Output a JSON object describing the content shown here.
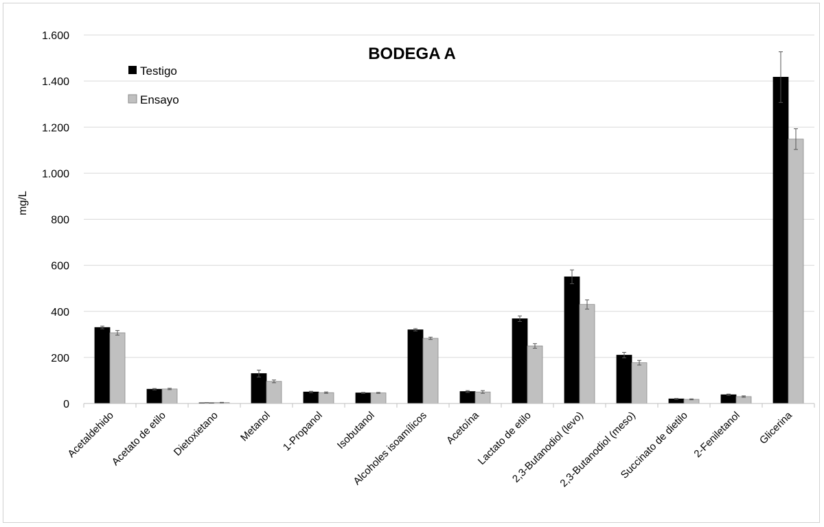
{
  "chart_data": {
    "type": "bar",
    "title": "BODEGA A",
    "xlabel": "",
    "ylabel": "mg/L",
    "ylim": [
      0,
      1600
    ],
    "yticks": [
      0,
      200,
      400,
      600,
      800,
      1000,
      1200,
      1400,
      1600
    ],
    "ytick_labels": [
      "0",
      "200",
      "400",
      "600",
      "800",
      "1.000",
      "1.200",
      "1.400",
      "1.600"
    ],
    "grid": true,
    "legend_position": "top-left",
    "categories": [
      "Acetaldehido",
      "Acetato de etilo",
      "Dietoxietano",
      "Metanol",
      "1-Propanol",
      "Isobutanol",
      "Alcoholes isoamílicos",
      "Acetoína",
      "Lactato de etilo",
      "2,3-Butanodiol (levo)",
      "2,3-Butanodiol (meso)",
      "Succinato de dietilo",
      "2-Feniletanol",
      "Glicerina"
    ],
    "series": [
      {
        "name": "Testigo",
        "color": "#000000",
        "values": [
          330,
          62,
          3,
          130,
          50,
          46,
          320,
          52,
          368,
          550,
          210,
          20,
          38,
          1417
        ],
        "errors": [
          6,
          3,
          1,
          15,
          3,
          2,
          5,
          4,
          12,
          30,
          12,
          2,
          3,
          110
        ]
      },
      {
        "name": "Ensayo",
        "color": "#c0c0c0",
        "values": [
          307,
          63,
          4,
          96,
          47,
          46,
          283,
          50,
          250,
          430,
          177,
          18,
          30,
          1148
        ],
        "errors": [
          10,
          3,
          1,
          6,
          3,
          2,
          5,
          6,
          10,
          20,
          10,
          2,
          3,
          45
        ]
      }
    ]
  }
}
